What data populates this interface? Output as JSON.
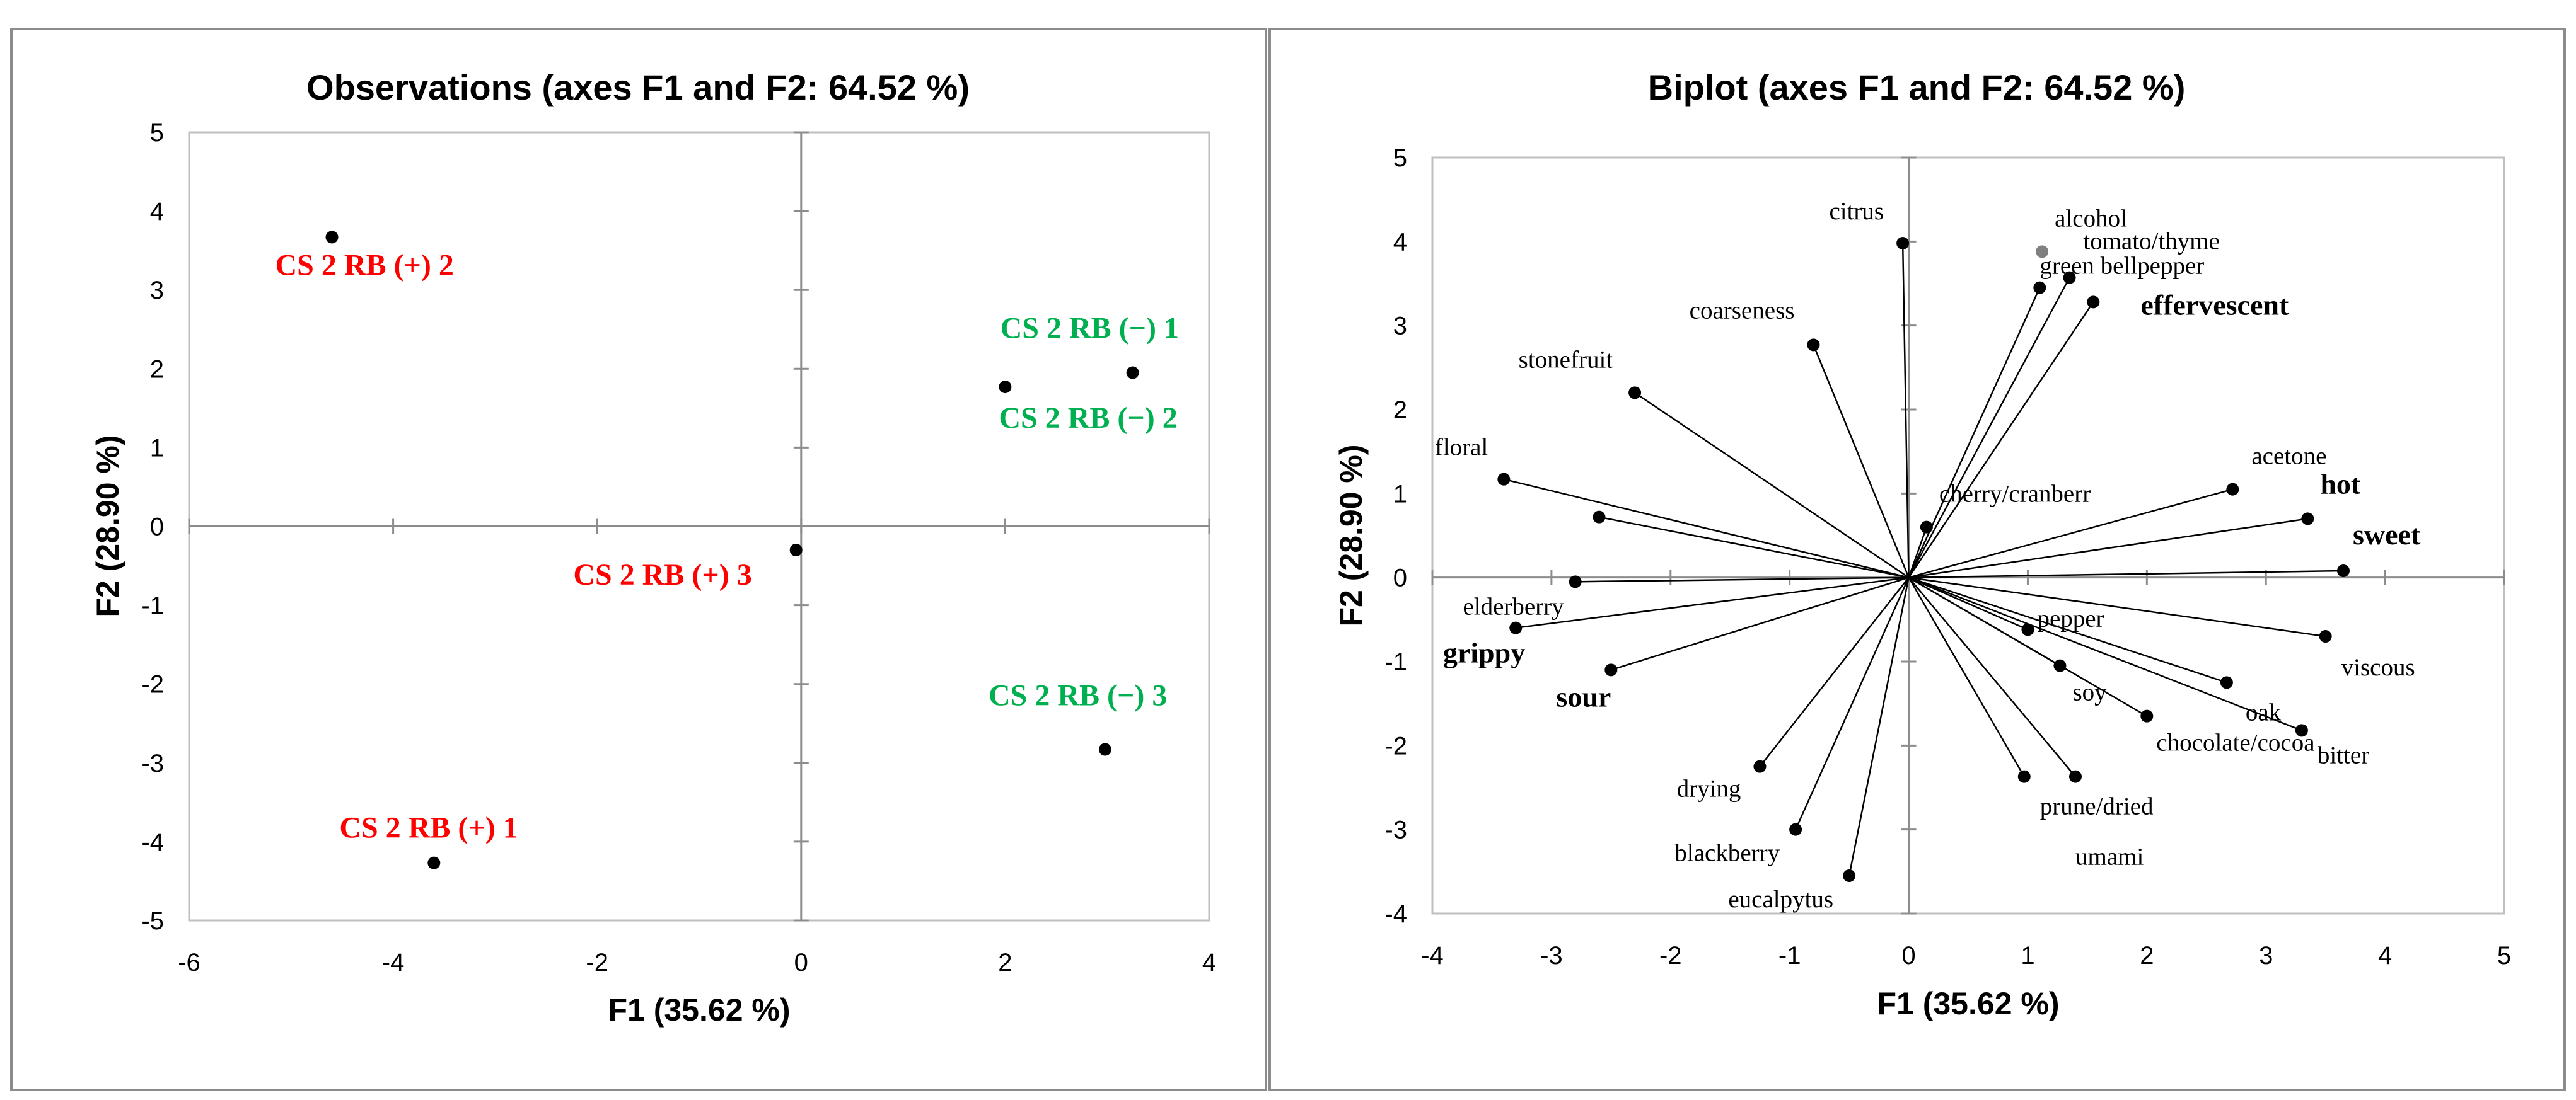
{
  "colors": {
    "positive": "#ff0000",
    "negative": "#00b050",
    "marker": "#000000",
    "marker_gray": "#808080"
  },
  "chart_data": [
    {
      "type": "scatter",
      "title": "Observations (axes F1 and F2: 64.52 %)",
      "xlabel": "F1 (35.62 %)",
      "ylabel": "F2 (28.90 %)",
      "xlim": [
        -6,
        4
      ],
      "ylim": [
        -5,
        5
      ],
      "xticks": [
        -6,
        -4,
        -2,
        0,
        2,
        4
      ],
      "yticks": [
        5,
        4,
        3,
        2,
        1,
        0,
        -1,
        -2,
        -3,
        -4,
        -5
      ],
      "points": [
        {
          "label": "CS 2 RB (+) 2",
          "x": -4.6,
          "y": 3.67,
          "group": "positive"
        },
        {
          "label": "CS 2 RB (−) 1",
          "x": 3.25,
          "y": 1.95,
          "group": "negative"
        },
        {
          "label": "CS 2 RB (−) 2",
          "x": 2.0,
          "y": 1.77,
          "group": "negative"
        },
        {
          "label": "CS 2 RB (+) 3",
          "x": -0.05,
          "y": -0.3,
          "group": "positive"
        },
        {
          "label": "CS 2 RB (−) 3",
          "x": 2.98,
          "y": -2.83,
          "group": "negative"
        },
        {
          "label": "CS 2 RB (+) 1",
          "x": -3.6,
          "y": -4.27,
          "group": "positive"
        }
      ]
    },
    {
      "type": "scatter",
      "subtype": "biplot",
      "title": "Biplot (axes F1 and F2: 64.52 %)",
      "xlabel": "F1 (35.62 %)",
      "ylabel": "F2 (28.90 %)",
      "xlim": [
        -4,
        5
      ],
      "ylim": [
        -4,
        5
      ],
      "xticks": [
        -4,
        -3,
        -2,
        -1,
        0,
        1,
        2,
        3,
        4,
        5
      ],
      "yticks": [
        5,
        4,
        3,
        2,
        1,
        0,
        -1,
        -2,
        -3,
        -4
      ],
      "variables": [
        {
          "label": "citrus",
          "x": -0.05,
          "y": 3.98
        },
        {
          "label": "alcohol",
          "x": 1.12,
          "y": 3.88,
          "marker": "gray",
          "vector": false
        },
        {
          "label": "green bellpepper",
          "x": 1.1,
          "y": 3.45
        },
        {
          "label": "tomato/thyme",
          "x": 1.35,
          "y": 3.57
        },
        {
          "label": "effervescent",
          "x": 1.55,
          "y": 3.28,
          "bold": true
        },
        {
          "label": "coarseness",
          "x": -0.8,
          "y": 2.77
        },
        {
          "label": "stonefruit",
          "x": -2.3,
          "y": 2.2
        },
        {
          "label": "floral",
          "x": -3.4,
          "y": 1.17
        },
        {
          "label": "",
          "x": -2.6,
          "y": 0.72
        },
        {
          "label": "cherry/cranberr",
          "x": 0.15,
          "y": 0.6
        },
        {
          "label": "acetone",
          "x": 2.72,
          "y": 1.05
        },
        {
          "label": "hot",
          "x": 3.35,
          "y": 0.7,
          "bold": true
        },
        {
          "label": "sweet",
          "x": 3.65,
          "y": 0.08,
          "bold": true
        },
        {
          "label": "elderberry",
          "x": -2.8,
          "y": -0.05
        },
        {
          "label": "grippy",
          "x": -3.3,
          "y": -0.6,
          "bold": true
        },
        {
          "label": "sour",
          "x": -2.5,
          "y": -1.1,
          "bold": true
        },
        {
          "label": "pepper",
          "x": 1.0,
          "y": -0.62
        },
        {
          "label": "soy",
          "x": 1.27,
          "y": -1.05
        },
        {
          "label": "viscous",
          "x": 3.5,
          "y": -0.7
        },
        {
          "label": "oak",
          "x": 2.67,
          "y": -1.25
        },
        {
          "label": "chocolate/cocoa",
          "x": 2.0,
          "y": -1.65
        },
        {
          "label": "bitter",
          "x": 3.3,
          "y": -1.82
        },
        {
          "label": "drying",
          "x": -1.25,
          "y": -2.25
        },
        {
          "label": "prune/dried",
          "x": 0.97,
          "y": -2.37
        },
        {
          "label": "umami",
          "x": 1.4,
          "y": -2.37
        },
        {
          "label": "blackberry",
          "x": -0.95,
          "y": -3.0
        },
        {
          "label": "eucalpytus",
          "x": -0.5,
          "y": -3.55
        }
      ]
    }
  ]
}
